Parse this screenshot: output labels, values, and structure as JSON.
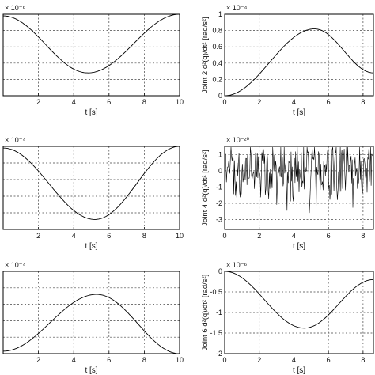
{
  "chart_data": [
    {
      "id": "top-left",
      "type": "line",
      "curve": "cos-dip",
      "x_ticks": [
        0,
        2,
        4,
        6,
        8,
        10
      ],
      "x_tick_labels": [
        "",
        "2",
        "4",
        "6",
        "8",
        "10"
      ],
      "xlim": [
        0,
        10
      ],
      "xlabel": "t [s]",
      "ylabel": "",
      "multiplier": "× 10⁻⁶",
      "y_tick_labels": [],
      "y_grid_count": 5,
      "series": [
        {
          "x": [
            0,
            4.8,
            10
          ],
          "y_norm": [
            0.98,
            0.28,
            1.0
          ]
        }
      ]
    },
    {
      "id": "top-right",
      "type": "line",
      "curve": "arch",
      "x_ticks": [
        0,
        2,
        4,
        6,
        8
      ],
      "x_tick_labels": [
        "0",
        "2",
        "4",
        "6",
        "8"
      ],
      "xlim": [
        0,
        8.6
      ],
      "xlabel": "t [s]",
      "ylabel": "Joint 2 d²(q)/dt² [rad/s²]",
      "multiplier": "× 10⁻⁴",
      "y_ticks": [
        0,
        0.2,
        0.4,
        0.6,
        0.8,
        1.0
      ],
      "y_tick_labels": [
        "0",
        "0.2",
        "0.4",
        "0.6",
        "0.8",
        "1"
      ],
      "ylim": [
        0,
        1.0
      ],
      "series": [
        {
          "x": [
            0,
            5.2,
            8.6
          ],
          "y": [
            0,
            0.82,
            0.28
          ]
        }
      ]
    },
    {
      "id": "mid-left",
      "type": "line",
      "curve": "cos-dip",
      "x_ticks": [
        0,
        2,
        4,
        6,
        8,
        10
      ],
      "x_tick_labels": [
        "",
        "2",
        "4",
        "6",
        "8",
        "10"
      ],
      "xlim": [
        0,
        10
      ],
      "xlabel": "t [s]",
      "ylabel": "",
      "multiplier": "× 10⁻⁴",
      "y_tick_labels": [],
      "y_grid_count": 5,
      "series": [
        {
          "x": [
            0,
            5.2,
            10
          ],
          "y_norm": [
            0.98,
            0.12,
            1.0
          ]
        }
      ]
    },
    {
      "id": "mid-right",
      "type": "line",
      "curve": "noise",
      "x_ticks": [
        0,
        2,
        4,
        6,
        8
      ],
      "x_tick_labels": [
        "0",
        "2",
        "4",
        "6",
        "8"
      ],
      "xlim": [
        0,
        8.6
      ],
      "xlabel": "t [s]",
      "ylabel": "Joint 4 d²(q)/dt² [rad/s²]",
      "multiplier": "× 10⁻²⁰",
      "y_ticks": [
        -3,
        -2,
        -1,
        0,
        1
      ],
      "y_tick_labels": [
        "-3",
        "-2",
        "-1",
        "0",
        "1"
      ],
      "ylim": [
        -3.6,
        1.5
      ],
      "series": [
        {
          "amplitude_early": 1.1,
          "amplitude_late": 1.6,
          "mean": 0
        }
      ]
    },
    {
      "id": "bottom-left",
      "type": "line",
      "curve": "arch",
      "x_ticks": [
        0,
        2,
        4,
        6,
        8,
        10
      ],
      "x_tick_labels": [
        "",
        "2",
        "4",
        "6",
        "8",
        "10"
      ],
      "xlim": [
        0,
        10
      ],
      "xlabel": "t [s]",
      "ylabel": "",
      "multiplier": "× 10⁻⁴",
      "y_tick_labels": [],
      "y_grid_count": 5,
      "series": [
        {
          "x": [
            0,
            5.3,
            10
          ],
          "y_norm": [
            0.03,
            0.72,
            0.0
          ]
        }
      ]
    },
    {
      "id": "bottom-right",
      "type": "line",
      "curve": "cos-dip",
      "x_ticks": [
        0,
        2,
        4,
        6,
        8
      ],
      "x_tick_labels": [
        "0",
        "2",
        "4",
        "6",
        "8"
      ],
      "xlim": [
        0,
        8.6
      ],
      "xlabel": "t [s]",
      "ylabel": "Joint 6 d²(q)/dt² [rad/s²]",
      "multiplier": "× 10⁻⁶",
      "y_ticks": [
        0,
        -0.5,
        -1,
        -1.5,
        -2
      ],
      "y_tick_labels": [
        "0",
        "-0.5",
        "-1",
        "-1.5",
        "-2"
      ],
      "ylim": [
        -2,
        0
      ],
      "series": [
        {
          "x": [
            0,
            4.6,
            8.6
          ],
          "y": [
            0,
            -1.38,
            -0.2
          ]
        }
      ]
    }
  ]
}
